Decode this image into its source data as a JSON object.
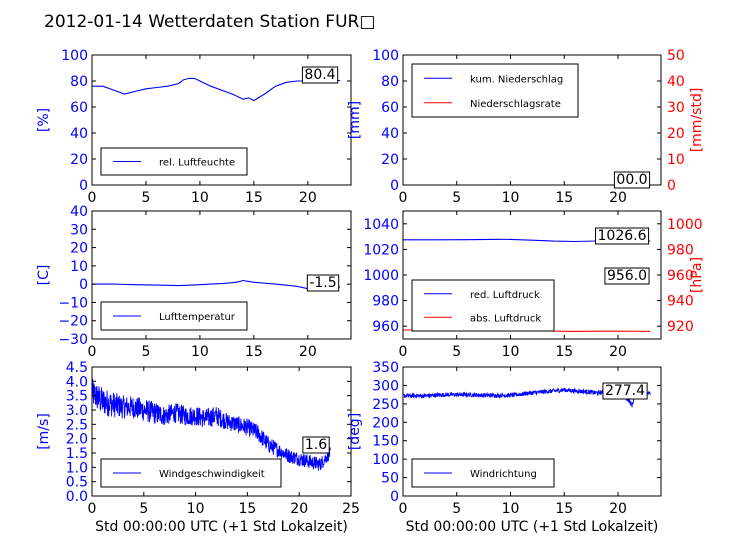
{
  "title": "2012-01-14 Wetterdaten Station FUR□",
  "colors": {
    "primary": "#0000ff",
    "secondary": "#ff0000",
    "frame": "#000000"
  },
  "chart_data": [
    {
      "id": "humidity",
      "type": "line",
      "ylabel": "[%]",
      "xlim": [
        0,
        24
      ],
      "ylim": [
        0,
        100
      ],
      "xticks": [
        "0",
        "5",
        "10",
        "15",
        "20"
      ],
      "yticks": [
        "0",
        "20",
        "40",
        "60",
        "80",
        "100"
      ],
      "legend": {
        "placement": "lower-left",
        "entries": [
          "rel. Luftfeuchte"
        ]
      },
      "annotation": "80.4",
      "series": [
        {
          "name": "rel. Luftfeuchte",
          "color": "#0000ff",
          "x": [
            0,
            1,
            2,
            3,
            4,
            5,
            6,
            7,
            8,
            8.5,
            9,
            9.5,
            10,
            11,
            12,
            13,
            14,
            14.5,
            15,
            16,
            17,
            18,
            19,
            20,
            21,
            22,
            23
          ],
          "y": [
            76,
            76,
            73,
            70,
            72,
            74,
            75,
            76,
            78,
            81,
            82,
            82,
            80,
            76,
            73,
            70,
            66,
            67,
            65,
            70,
            76,
            79,
            80,
            80,
            80.5,
            80.6,
            80.4
          ]
        }
      ]
    },
    {
      "id": "precipitation",
      "type": "line",
      "ylabel": "[mm]",
      "y2label": "[mm/std]",
      "xlim": [
        0,
        24
      ],
      "ylim": [
        0,
        100
      ],
      "y2lim": [
        0,
        50
      ],
      "xticks": [
        "0",
        "5",
        "10",
        "15",
        "20"
      ],
      "yticks": [
        "0",
        "20",
        "40",
        "60",
        "80",
        "100"
      ],
      "y2ticks": [
        "0",
        "10",
        "20",
        "30",
        "40",
        "50"
      ],
      "legend": {
        "placement": "upper-left",
        "entries": [
          "kum. Niederschlag",
          "Niederschlagsrate"
        ]
      },
      "annotation": "00.0",
      "series": [
        {
          "name": "kum. Niederschlag",
          "color": "#0000ff",
          "x": [
            0,
            23
          ],
          "y": [
            0,
            0
          ]
        },
        {
          "name": "Niederschlagsrate",
          "color": "#ff0000",
          "x": [
            0,
            23
          ],
          "y": [
            0,
            0
          ]
        }
      ]
    },
    {
      "id": "temperature",
      "type": "line",
      "ylabel": "[C]",
      "xlim": [
        0,
        24
      ],
      "ylim": [
        -30,
        40
      ],
      "xticks": [
        "0",
        "5",
        "10",
        "15",
        "20"
      ],
      "yticks": [
        "−30",
        "−20",
        "−10",
        "0",
        "10",
        "20",
        "30",
        "40"
      ],
      "legend": {
        "placement": "lower-left",
        "entries": [
          "Lufttemperatur"
        ]
      },
      "annotation": "-1.5",
      "series": [
        {
          "name": "Lufttemperatur",
          "color": "#0000ff",
          "x": [
            0,
            2,
            4,
            6,
            8,
            9,
            10,
            11,
            12,
            13,
            13.5,
            14,
            14.5,
            15,
            16,
            17,
            18,
            19,
            20,
            21,
            22,
            23
          ],
          "y": [
            0,
            0,
            -0.3,
            -0.5,
            -0.8,
            -0.6,
            -0.3,
            0,
            0.3,
            0.8,
            1.2,
            2,
            1.5,
            1,
            0.5,
            0,
            -0.6,
            -1.2,
            -2.5,
            -2,
            -1.8,
            -1.5
          ]
        }
      ]
    },
    {
      "id": "pressure",
      "type": "line",
      "y2label": "[hPa]",
      "xlim": [
        0,
        24
      ],
      "ylim": [
        950,
        1050
      ],
      "y2lim": [
        910,
        1010
      ],
      "xticks": [
        "0",
        "5",
        "10",
        "15",
        "20"
      ],
      "yticks": [
        "960",
        "980",
        "1000",
        "1020",
        "1040"
      ],
      "y2ticks": [
        "920",
        "940",
        "960",
        "980",
        "1000"
      ],
      "legend": {
        "placement": "lower-left",
        "entries": [
          "red. Luftdruck",
          "abs. Luftdruck"
        ]
      },
      "annotations": [
        "1026.6",
        "956.0"
      ],
      "series": [
        {
          "name": "red. Luftdruck",
          "color": "#0000ff",
          "x": [
            0,
            3,
            6,
            9,
            10,
            12,
            14,
            16,
            18,
            20,
            23
          ],
          "y": [
            1027.5,
            1027.5,
            1027.6,
            1027.9,
            1027.8,
            1027.2,
            1026.5,
            1026.2,
            1026.6,
            1026.7,
            1026.6
          ]
        },
        {
          "name": "abs. Luftdruck",
          "color": "#ff0000",
          "x": [
            0,
            3,
            6,
            9,
            10,
            12,
            14,
            16,
            18,
            20,
            23
          ],
          "y": [
            957,
            957,
            957.1,
            957.3,
            957.2,
            956.8,
            956.2,
            955.9,
            956.1,
            956.1,
            956.0
          ]
        }
      ]
    },
    {
      "id": "windspeed",
      "type": "line",
      "ylabel": "[m/s]",
      "xlabel": "Std 00:00:00 UTC (+1 Std Lokalzeit)",
      "xlim": [
        0,
        25
      ],
      "ylim": [
        0,
        4.5
      ],
      "xticks": [
        "0",
        "5",
        "10",
        "15",
        "20",
        "25"
      ],
      "yticks": [
        "0.0",
        "0.5",
        "1.0",
        "1.5",
        "2.0",
        "2.5",
        "3.0",
        "3.5",
        "4.0",
        "4.5"
      ],
      "legend": {
        "placement": "lower-left",
        "entries": [
          "Windgeschwindigkeit"
        ]
      },
      "annotation": "1.6",
      "series": [
        {
          "name": "Windgeschwindigkeit",
          "color": "#0000ff",
          "x": [
            0,
            1,
            2,
            3,
            4,
            5,
            6,
            7,
            8,
            9,
            10,
            11,
            12,
            13,
            14,
            15,
            16,
            17,
            18,
            19,
            20,
            21,
            22,
            23
          ],
          "y": [
            3.6,
            3.3,
            3.2,
            3.1,
            3.1,
            3.0,
            2.9,
            2.8,
            2.9,
            2.8,
            2.8,
            2.7,
            2.8,
            2.6,
            2.5,
            2.4,
            2.2,
            1.8,
            1.6,
            1.4,
            1.3,
            1.2,
            1.1,
            1.5
          ],
          "amplitude": [
            0.5,
            0.5,
            0.45,
            0.4,
            0.4,
            0.4,
            0.4,
            0.35,
            0.35,
            0.35,
            0.35,
            0.35,
            0.35,
            0.3,
            0.3,
            0.3,
            0.3,
            0.3,
            0.25,
            0.25,
            0.25,
            0.25,
            0.25,
            0.2
          ]
        }
      ]
    },
    {
      "id": "winddirection",
      "type": "line",
      "ylabel": "[deg]",
      "xlabel": "Std 00:00:00 UTC (+1 Std Lokalzeit)",
      "xlim": [
        0,
        24
      ],
      "ylim": [
        0,
        350
      ],
      "xticks": [
        "0",
        "5",
        "10",
        "15",
        "20"
      ],
      "yticks": [
        "0",
        "50",
        "100",
        "150",
        "200",
        "250",
        "300",
        "350"
      ],
      "legend": {
        "placement": "lower-left",
        "entries": [
          "Windrichtung"
        ]
      },
      "annotation": "277.4",
      "series": [
        {
          "name": "Windrichtung",
          "color": "#0000ff",
          "x": [
            0,
            2,
            4,
            6,
            8,
            10,
            12,
            14,
            15,
            16,
            17,
            18,
            19,
            20,
            21,
            21.3,
            21.6,
            22,
            23
          ],
          "y": [
            272,
            272,
            275,
            275,
            273,
            273,
            280,
            285,
            288,
            285,
            283,
            280,
            282,
            283,
            260,
            245,
            275,
            285,
            277
          ],
          "amplitude": 6
        }
      ]
    }
  ]
}
